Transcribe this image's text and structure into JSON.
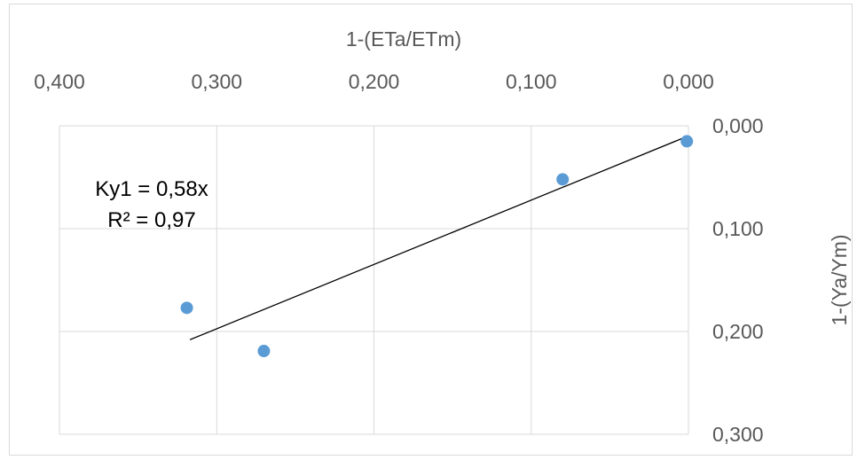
{
  "chart_data": {
    "type": "scatter",
    "title": "",
    "xlabel": "1-(ETa/ETm)",
    "ylabel": "1-(Ya/Ym)",
    "x_axis_position": "top",
    "x_reversed": true,
    "y_axis_position": "right",
    "y_reversed": true,
    "xlim": [
      0,
      0.4
    ],
    "ylim": [
      0,
      0.3
    ],
    "x_ticks": [
      "0,400",
      "0,300",
      "0,200",
      "0,100",
      "0,000"
    ],
    "x_tick_values": [
      0.4,
      0.3,
      0.2,
      0.1,
      0.0
    ],
    "y_ticks": [
      "0,000",
      "0,100",
      "0,200",
      "0,300"
    ],
    "y_tick_values": [
      0.0,
      0.1,
      0.2,
      0.3
    ],
    "grid": true,
    "point_color": "#5b9bd5",
    "series": [
      {
        "points": [
          {
            "x": 0.319,
            "y": 0.177
          },
          {
            "x": 0.27,
            "y": 0.219
          },
          {
            "x": 0.08,
            "y": 0.052
          },
          {
            "x": 0.001,
            "y": 0.015
          }
        ]
      }
    ],
    "trendline": {
      "x_start": 0.317,
      "y_start": 0.208,
      "x_end": 0.002,
      "y_end": 0.011,
      "color": "#000000"
    },
    "annotation": {
      "line1": "Ky1 = 0,58x",
      "line2": "R² = 0,97"
    }
  }
}
